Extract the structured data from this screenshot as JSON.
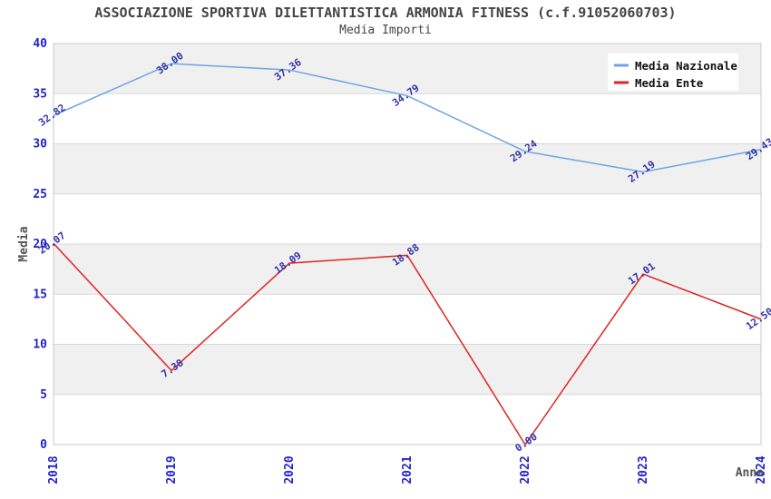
{
  "title": "ASSOCIAZIONE SPORTIVA DILETTANTISTICA ARMONIA FITNESS (c.f.91052060703)",
  "subtitle": "Media Importi",
  "chart_data": {
    "type": "line",
    "x": [
      "2018",
      "2019",
      "2020",
      "2021",
      "2022",
      "2023",
      "2024"
    ],
    "series": [
      {
        "name": "Media Nazionale",
        "color": "#6EA5E1",
        "values": [
          32.82,
          38.0,
          37.36,
          34.79,
          29.24,
          27.19,
          29.43
        ]
      },
      {
        "name": "Media Ente",
        "color": "#E02222",
        "values": [
          20.07,
          7.38,
          18.09,
          18.88,
          0.0,
          17.01,
          12.5
        ]
      }
    ],
    "xlabel": "Anno",
    "ylabel": "Media",
    "ylim": [
      0,
      40
    ],
    "yticks": [
      0,
      5,
      10,
      15,
      20,
      25,
      30,
      35,
      40
    ],
    "ytick_step": 5,
    "value_decimals": 2,
    "legend_position": "top-right",
    "grid": "horizontal-bands",
    "band_colors": [
      "#ffffff",
      "#f0f0f0"
    ],
    "point_label_color": "#3333AA",
    "tick_color": "#2323CC"
  },
  "colors": {
    "title_text": "#444444",
    "axis_title_text": "#555555",
    "plot_border": "#c8c8c8",
    "gridline": "#d8d8d8",
    "legend_bg": "#ffffff",
    "legend_text": "#111111"
  }
}
